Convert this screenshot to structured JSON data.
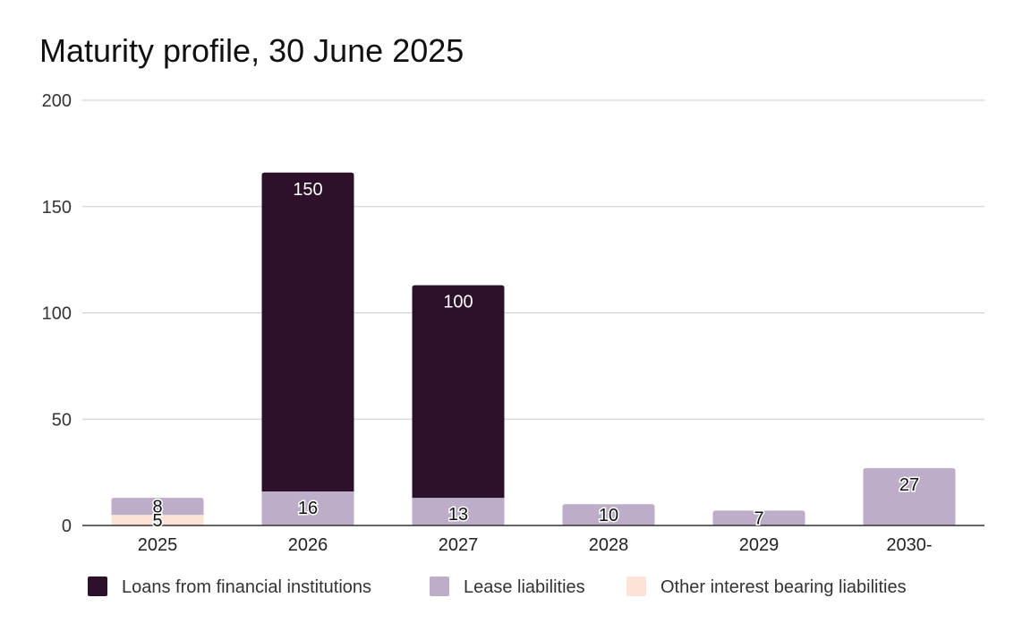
{
  "chart_data": {
    "type": "bar",
    "stacked": true,
    "title": "Maturity profile, 30 June 2025",
    "xlabel": "",
    "ylabel": "",
    "categories": [
      "2025",
      "2026",
      "2027",
      "2028",
      "2029",
      "2030-"
    ],
    "ylim": [
      0,
      200
    ],
    "yticks": [
      0,
      50,
      100,
      150,
      200
    ],
    "grid": true,
    "legend_position": "bottom",
    "series": [
      {
        "name": "Other interest bearing liabilities",
        "values": [
          5,
          0,
          0,
          0,
          0,
          0
        ],
        "color": "#fde3d6",
        "label_color": "#111111"
      },
      {
        "name": "Lease liabilities",
        "values": [
          8,
          16,
          13,
          10,
          7,
          27
        ],
        "color": "#bcaec9",
        "label_color": "#111111"
      },
      {
        "name": "Loans from financial institutions",
        "values": [
          0,
          150,
          100,
          0,
          0,
          0
        ],
        "color": "#2d1029",
        "label_color": "#ffffff"
      }
    ],
    "legend_order": [
      "Loans from financial institutions",
      "Lease liabilities",
      "Other interest bearing liabilities"
    ]
  }
}
